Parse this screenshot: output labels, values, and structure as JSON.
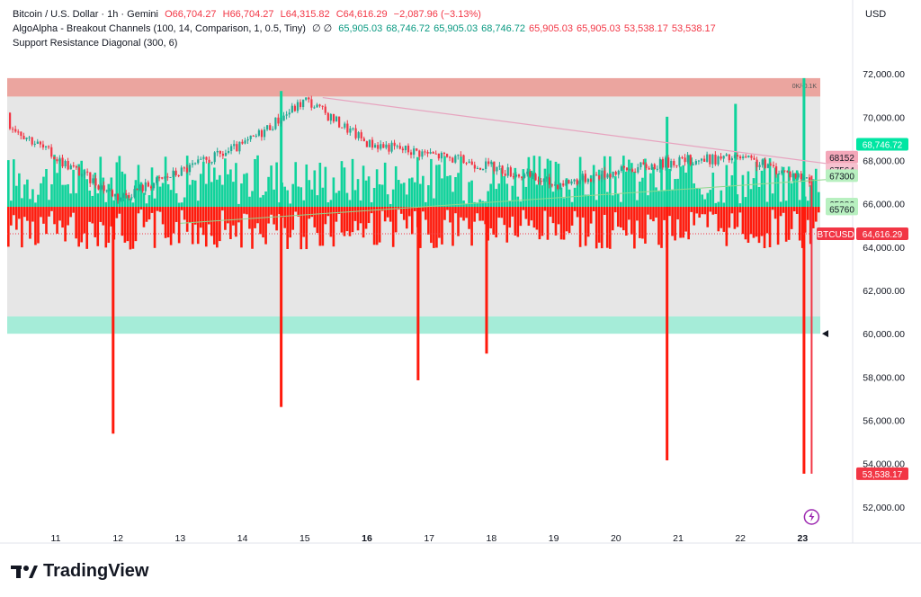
{
  "legend": {
    "symbol": "Bitcoin / U.S. Dollar · 1h · Gemini",
    "open": "O66,704.27",
    "high": "H66,704.27",
    "low": "L64,315.82",
    "close": "C64,616.29",
    "change": "−2,087.96 (−3.13%)",
    "ind1_name": "AlgoAlpha - Breakout Channels (100, 14, Comparison, 1, 0.5, Tiny)",
    "ind1_glyphs": "∅ ∅",
    "ind1_values": [
      "65,905.03",
      "68,746.72",
      "65,905.03",
      "68,746.72",
      "65,905.03",
      "65,905.03",
      "53,538.17",
      "53,538.17"
    ],
    "ind1_value_colors": [
      "#089981",
      "#089981",
      "#089981",
      "#089981",
      "#f23645",
      "#f23645",
      "#f23645",
      "#f23645"
    ],
    "ind2_name": "Support Resistance Diagonal (300, 6)"
  },
  "currency": "USD",
  "brand": "TradingView",
  "colors": {
    "up": "#22ab94",
    "down": "#f23645",
    "volume_up": "#0fd39b",
    "volume_down": "#ff1a0c",
    "resistance_zone": "#eba59f",
    "support_zone": "#a5ecd8",
    "channel_fill": "#e6e6e6",
    "diagonal_line": "#e7a4bf",
    "support_line": "#8ed88e"
  },
  "chart_data": {
    "type": "candlestick",
    "ylim": [
      51000,
      73000
    ],
    "y_ticks": [
      "52,000.00",
      "54,000.00",
      "56,000.00",
      "58,000.00",
      "60,000.00",
      "62,000.00",
      "64,000.00",
      "66,000.00",
      "68,000.00",
      "70,000.00",
      "72,000.00"
    ],
    "x_ticks": [
      "11",
      "12",
      "13",
      "14",
      "15",
      "16",
      "17",
      "18",
      "19",
      "20",
      "21",
      "22",
      "23"
    ],
    "resistance_zone": [
      70950,
      71800
    ],
    "support_zone": [
      60000,
      60800
    ],
    "channel_range": [
      60800,
      70950
    ],
    "zone_label": "0K/-0.1K",
    "diagonal_resistance": {
      "from": {
        "x": "15",
        "y": 70900
      },
      "to": {
        "x": "23",
        "y": 67700
      }
    },
    "support_line": {
      "from": {
        "x": "13",
        "y": 65100
      },
      "to": {
        "x": "23",
        "y": 67200
      }
    },
    "close_path": [
      {
        "x": "10",
        "y": 70200
      },
      {
        "x": "11",
        "y": 68100
      },
      {
        "x": "12",
        "y": 66300
      },
      {
        "x": "13",
        "y": 67500
      },
      {
        "x": "14",
        "y": 68700
      },
      {
        "x": "15",
        "y": 70800
      },
      {
        "x": "16",
        "y": 68800
      },
      {
        "x": "17",
        "y": 68300
      },
      {
        "x": "18",
        "y": 67700
      },
      {
        "x": "19",
        "y": 66900
      },
      {
        "x": "20",
        "y": 67500
      },
      {
        "x": "21",
        "y": 68000
      },
      {
        "x": "22",
        "y": 68100
      },
      {
        "x": "23",
        "y": 67200
      },
      {
        "x": "23",
        "y": 64616.29
      }
    ],
    "volume_spikes": [
      {
        "x": "11.9",
        "direction": "down",
        "size": 0.85
      },
      {
        "x": "14.6",
        "direction": "up",
        "size": 0.9
      },
      {
        "x": "14.6",
        "direction": "down",
        "size": 0.75
      },
      {
        "x": "16.8",
        "direction": "down",
        "size": 0.65
      },
      {
        "x": "17.9",
        "direction": "down",
        "size": 0.55
      },
      {
        "x": "20.8",
        "direction": "up",
        "size": 0.7
      },
      {
        "x": "20.8",
        "direction": "down",
        "size": 0.95
      },
      {
        "x": "21.9",
        "direction": "up",
        "size": 0.8
      },
      {
        "x": "23",
        "direction": "up",
        "size": 1.0
      },
      {
        "x": "23",
        "direction": "down",
        "size": 1.0
      }
    ],
    "right_labels": [
      {
        "text": "68152",
        "value": 68152,
        "color": "#f4a7b9"
      },
      {
        "text": "68,746.72",
        "value": 68746.72,
        "color": "#00e6a3"
      },
      {
        "text": "67564",
        "value": 67564,
        "color": "#f7c1cf"
      },
      {
        "text": "67300",
        "value": 67300,
        "color": "#b8f0c0"
      },
      {
        "text": "65986",
        "value": 65986,
        "color": "#b8f0c0"
      },
      {
        "text": "65760",
        "value": 65760,
        "color": "#b8f0c0"
      },
      {
        "text": "BTCUSD",
        "value": 64616.29,
        "color": "#f23645"
      },
      {
        "text": "64,616.29",
        "value": 64616.29,
        "color": "#f23645"
      },
      {
        "text": "53,538.17",
        "value": 53538.17,
        "color": "#f23645"
      }
    ]
  }
}
